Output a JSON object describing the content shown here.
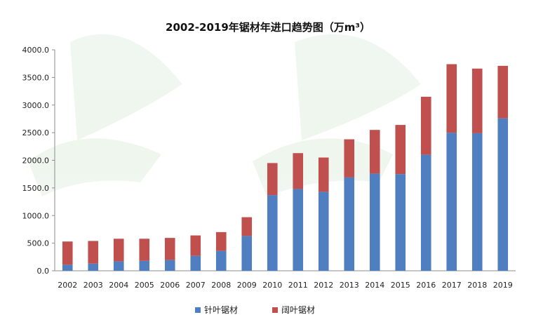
{
  "chart_data": {
    "type": "bar",
    "stacked": true,
    "title": "2002-2019年锯材年进口趋势图（万m³）",
    "categories": [
      "2002",
      "2003",
      "2004",
      "2005",
      "2006",
      "2007",
      "2008",
      "2009",
      "2010",
      "2011",
      "2012",
      "2013",
      "2014",
      "2015",
      "2016",
      "2017",
      "2018",
      "2019"
    ],
    "series": [
      {
        "name": "针叶锯材",
        "color": "#4f7fc0",
        "values": [
          110,
          130,
          170,
          180,
          195,
          270,
          360,
          630,
          1370,
          1480,
          1430,
          1690,
          1760,
          1750,
          2100,
          2500,
          2490,
          2760
        ]
      },
      {
        "name": "阔叶锯材",
        "color": "#c0504d",
        "values": [
          420,
          410,
          410,
          400,
          400,
          370,
          340,
          340,
          580,
          650,
          620,
          690,
          790,
          890,
          1050,
          1240,
          1170,
          950
        ]
      }
    ],
    "ylim": [
      0,
      4000
    ],
    "yticks": [
      "0.0",
      "500.0",
      "1000.0",
      "1500.0",
      "2000.0",
      "2500.0",
      "3000.0",
      "3500.0",
      "4000.0"
    ],
    "grid": false,
    "legend": "bottom"
  }
}
